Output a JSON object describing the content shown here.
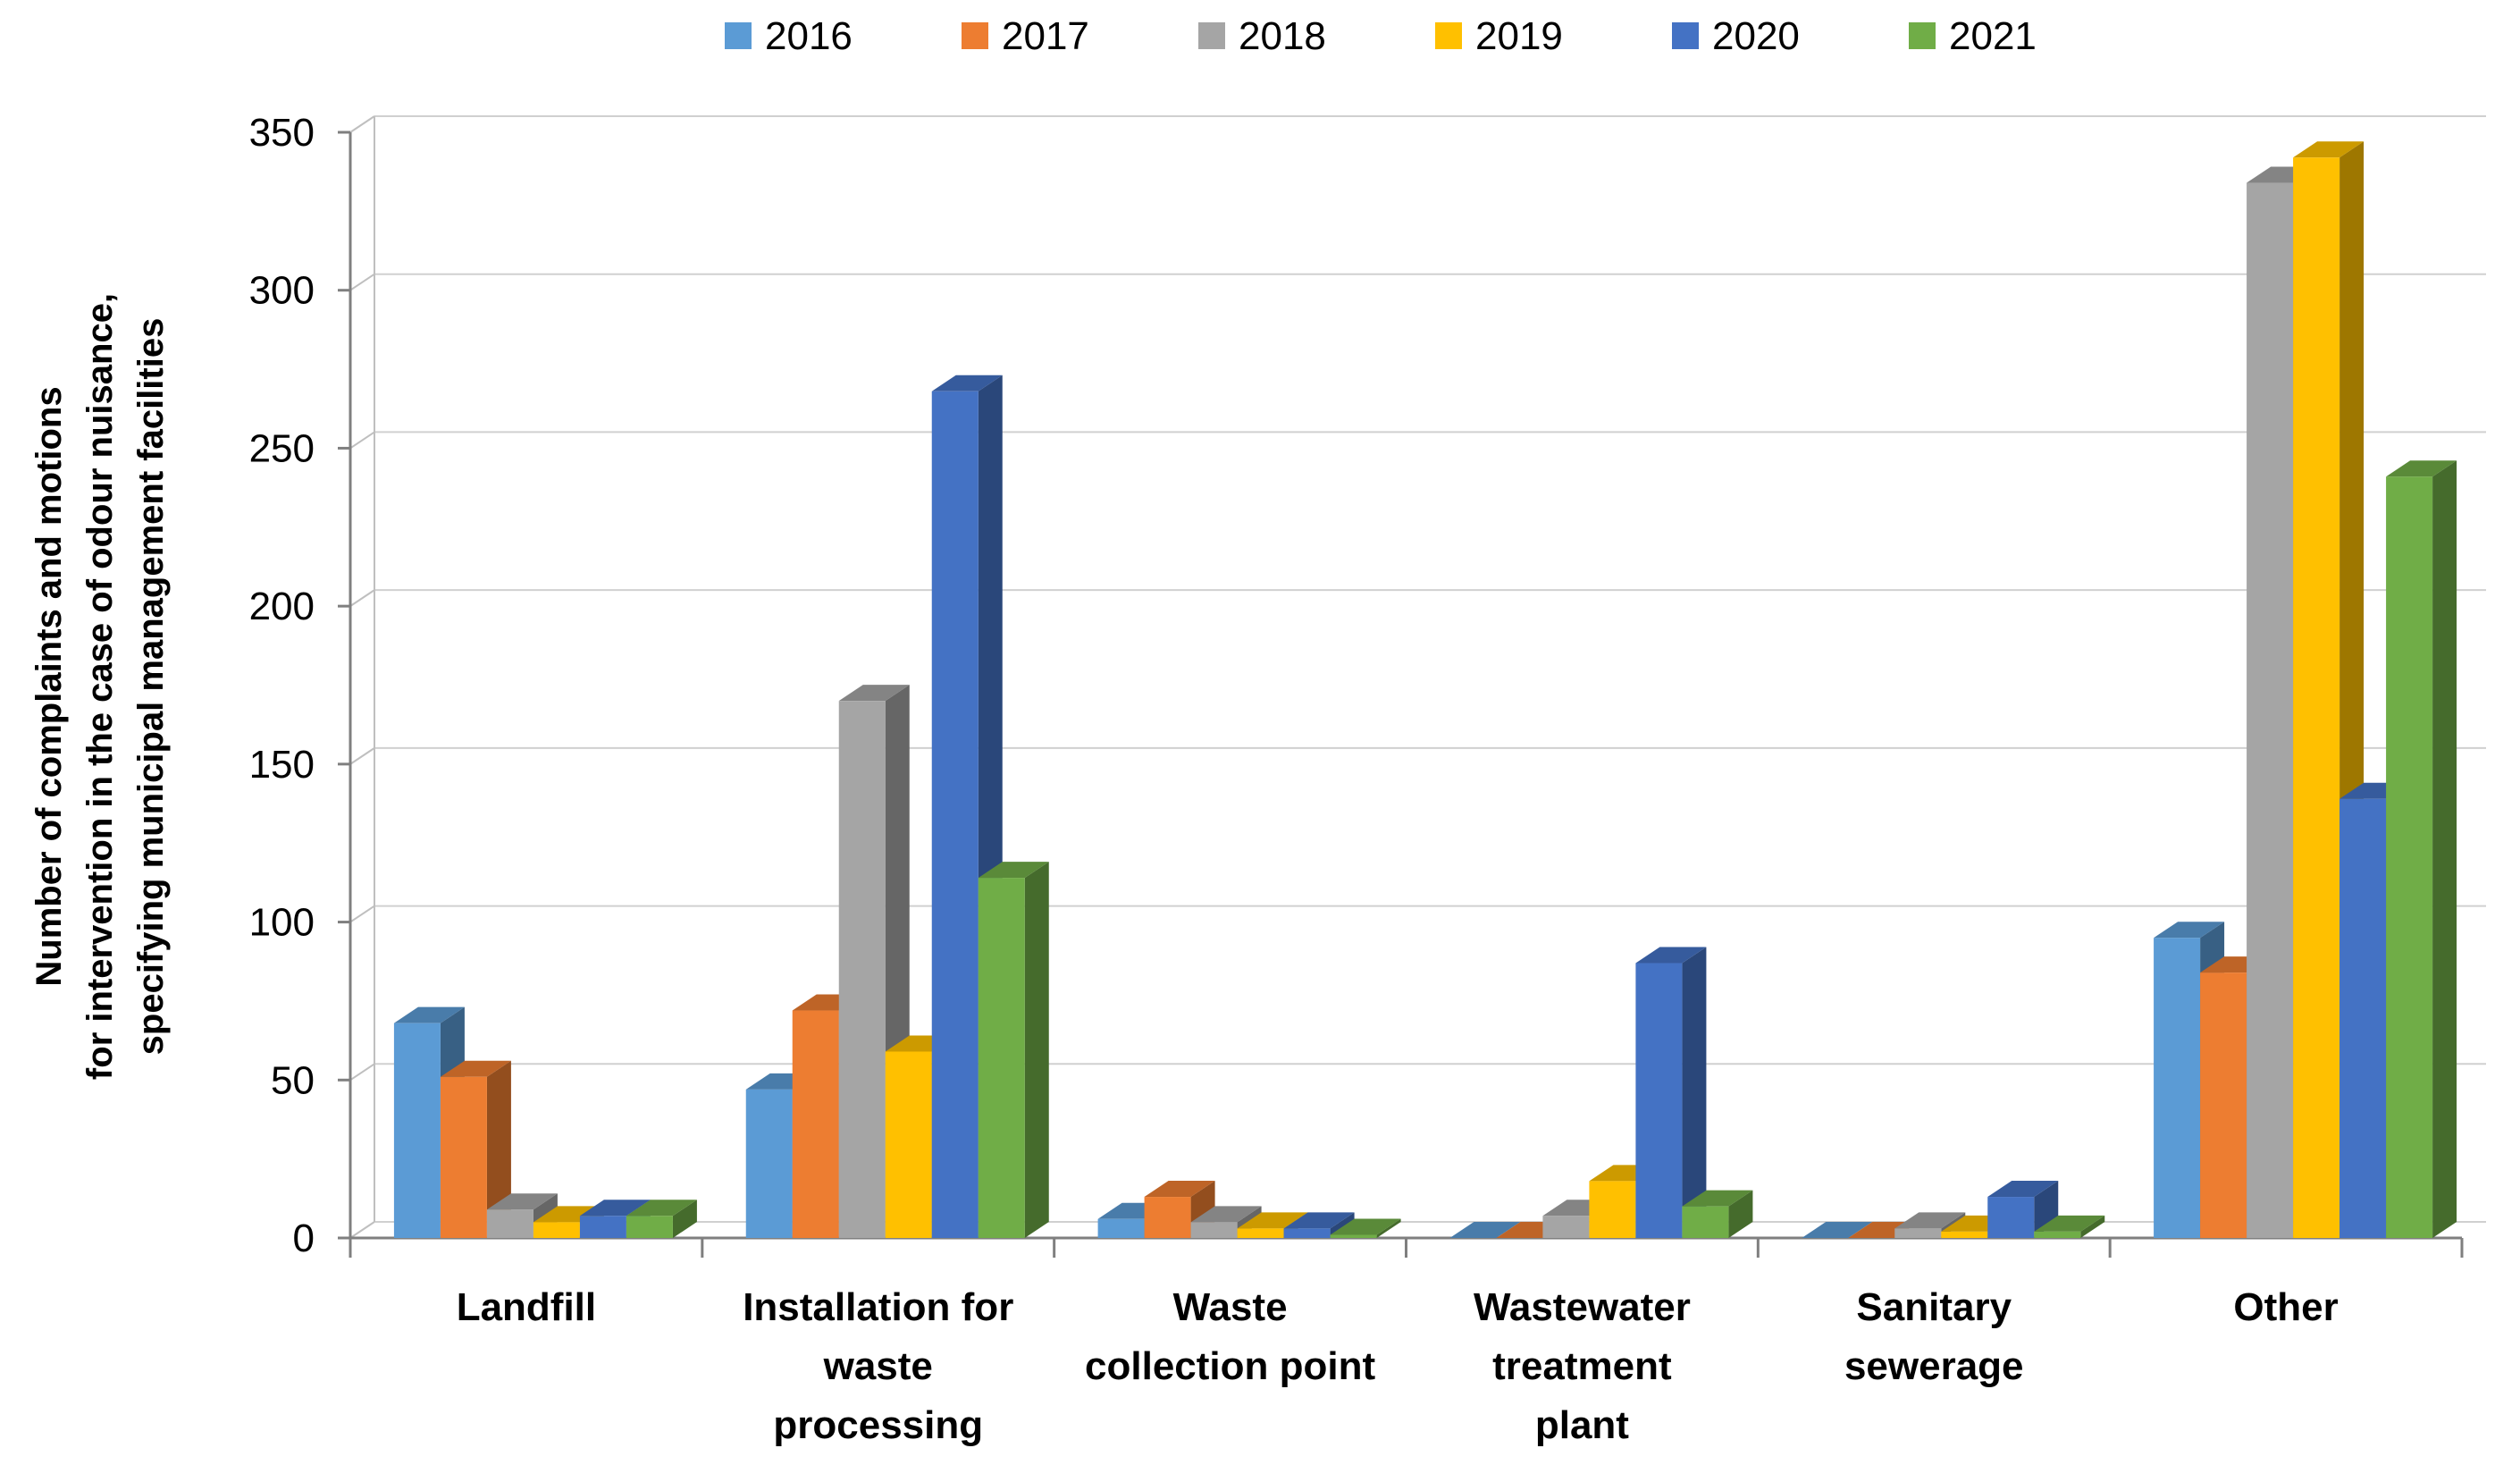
{
  "chart_data": {
    "type": "bar",
    "style": "3d-clustered-column",
    "ylabel": [
      "Number of complaints and motions",
      "for intervention in the case of odour nuisance,",
      "specifying municipal management facilities"
    ],
    "ylim": [
      0,
      350
    ],
    "yticks": [
      0,
      50,
      100,
      150,
      200,
      250,
      300,
      350
    ],
    "grid": true,
    "legend_position": "top",
    "categories": [
      [
        "Landfill"
      ],
      [
        "Installation for",
        "waste",
        "processing"
      ],
      [
        "Waste",
        "collection point"
      ],
      [
        "Wastewater",
        "treatment",
        "plant"
      ],
      [
        "Sanitary",
        "sewerage"
      ],
      [
        "Other"
      ]
    ],
    "series": [
      {
        "name": "2016",
        "color": "#5B9BD5",
        "values": [
          68,
          47,
          6,
          0,
          0,
          95
        ]
      },
      {
        "name": "2017",
        "color": "#ED7D31",
        "values": [
          51,
          72,
          13,
          0,
          0,
          84
        ]
      },
      {
        "name": "2018",
        "color": "#A5A5A5",
        "values": [
          9,
          170,
          5,
          7,
          3,
          334
        ]
      },
      {
        "name": "2019",
        "color": "#FFC000",
        "values": [
          5,
          59,
          3,
          18,
          2,
          342
        ]
      },
      {
        "name": "2020",
        "color": "#4472C4",
        "values": [
          7,
          268,
          3,
          87,
          13,
          139
        ]
      },
      {
        "name": "2021",
        "color": "#70AD47",
        "values": [
          7,
          114,
          1,
          10,
          2,
          241
        ]
      }
    ]
  }
}
